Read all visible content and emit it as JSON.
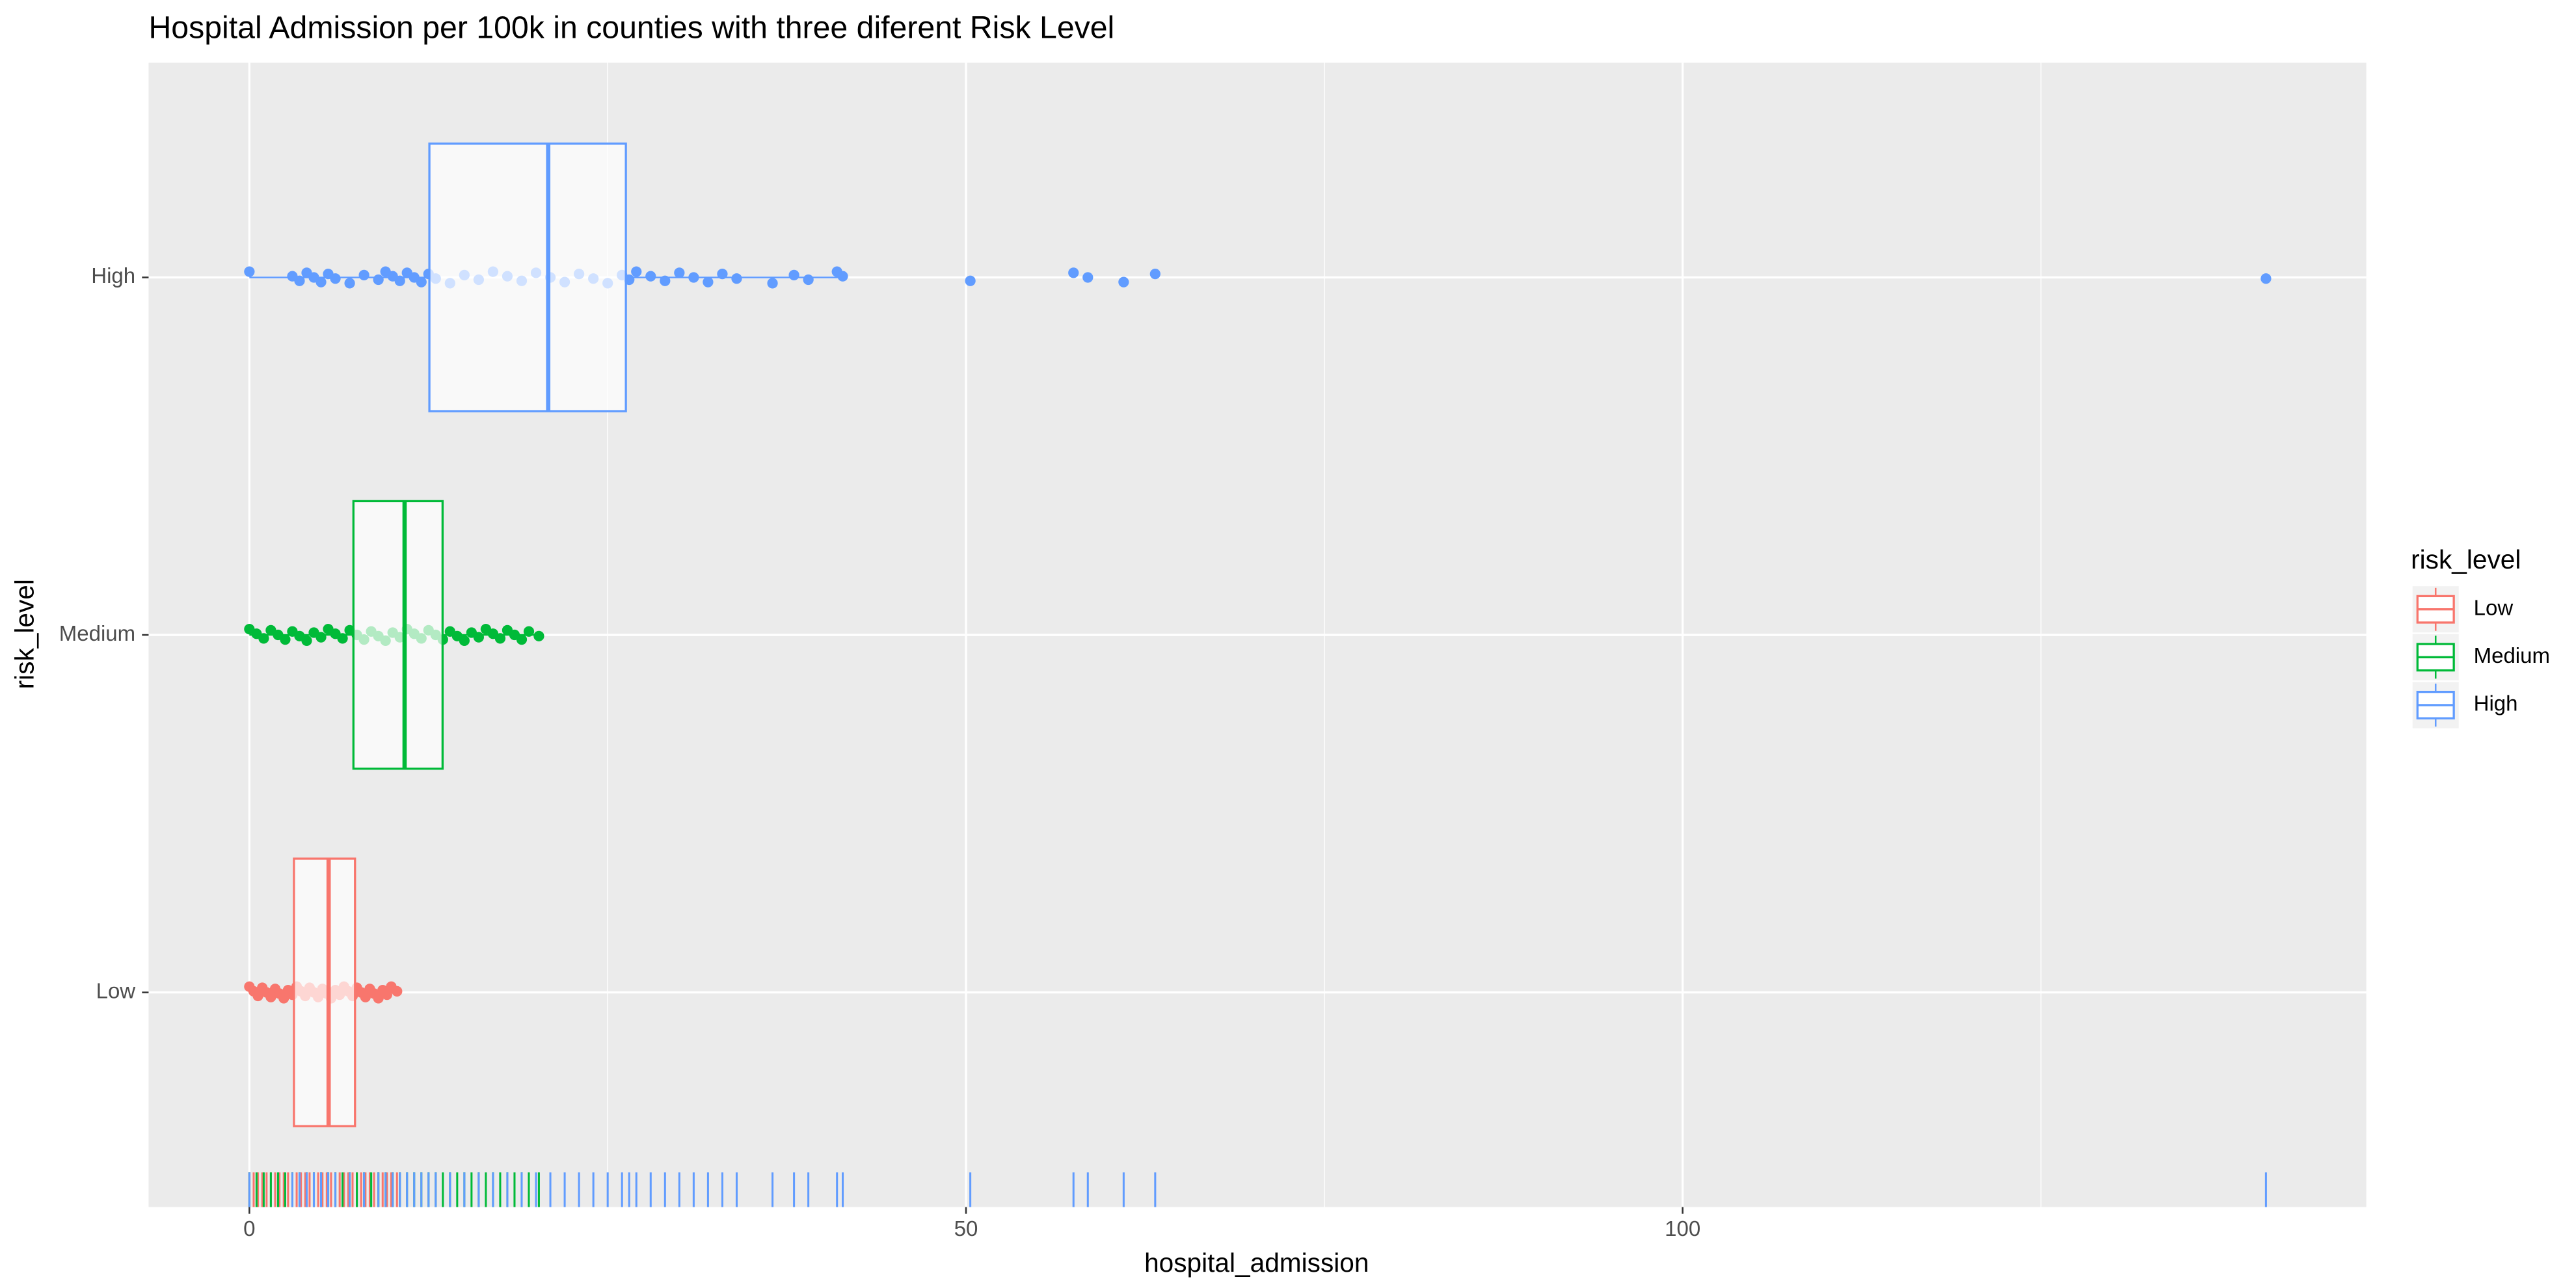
{
  "chart_data": {
    "type": "boxplot",
    "title": "Hospital Admission per 100k in counties with three diferent Risk Level",
    "x_label": "hospital_admission",
    "y_label": "risk_level",
    "legend_title": "risk_level",
    "xlim": [
      -7.03,
      147.7
    ],
    "xticks": [
      0,
      50,
      100
    ],
    "xminor": [
      25,
      75,
      125
    ],
    "grid": true,
    "series": [
      {
        "name": "Low",
        "color": "#F8766D",
        "whisker_low": 0,
        "q1": 3.11,
        "median": 5.53,
        "q3": 7.37,
        "whisker_high": 10.3,
        "points": [
          0,
          0.3,
          0.6,
          0.9,
          1.2,
          1.5,
          1.8,
          2.1,
          2.4,
          2.7,
          3,
          3.3,
          3.6,
          3.9,
          4.2,
          4.5,
          4.8,
          5.1,
          5.4,
          5.7,
          6,
          6.3,
          6.6,
          6.9,
          7.2,
          7.5,
          7.8,
          8.1,
          8.4,
          8.7,
          9,
          9.3,
          9.6,
          9.9,
          10.3
        ]
      },
      {
        "name": "Medium",
        "color": "#00BA38",
        "whisker_low": 0,
        "q1": 7.26,
        "median": 10.83,
        "q3": 13.48,
        "whisker_high": 20.2,
        "points": [
          0,
          0.5,
          1,
          1.5,
          2,
          2.5,
          3,
          3.5,
          4,
          4.5,
          5,
          5.5,
          6,
          6.5,
          7,
          7.5,
          8,
          8.5,
          9,
          9.5,
          10,
          10.5,
          11,
          11.5,
          12,
          12.5,
          13,
          13.5,
          14,
          14.5,
          15,
          15.5,
          16,
          16.5,
          17,
          17.5,
          18,
          18.5,
          19,
          19.5,
          20.2
        ]
      },
      {
        "name": "High",
        "color": "#619CFF",
        "whisker_low": 0,
        "q1": 12.56,
        "median": 20.85,
        "q3": 26.27,
        "whisker_high": 41.4,
        "points": [
          0,
          3,
          3.5,
          4,
          4.5,
          5,
          5.5,
          6,
          7,
          8,
          9,
          9.5,
          10,
          10.5,
          11,
          11.5,
          12,
          12.5,
          13,
          14,
          15,
          16,
          17,
          18,
          19,
          20,
          21,
          22,
          23,
          24,
          25,
          26,
          26.5,
          27,
          28,
          29,
          30,
          31,
          32,
          33,
          34,
          36.5,
          38,
          39,
          41,
          41.4,
          50.3,
          57.5,
          58.5,
          61,
          63.2,
          140.7
        ]
      }
    ]
  }
}
